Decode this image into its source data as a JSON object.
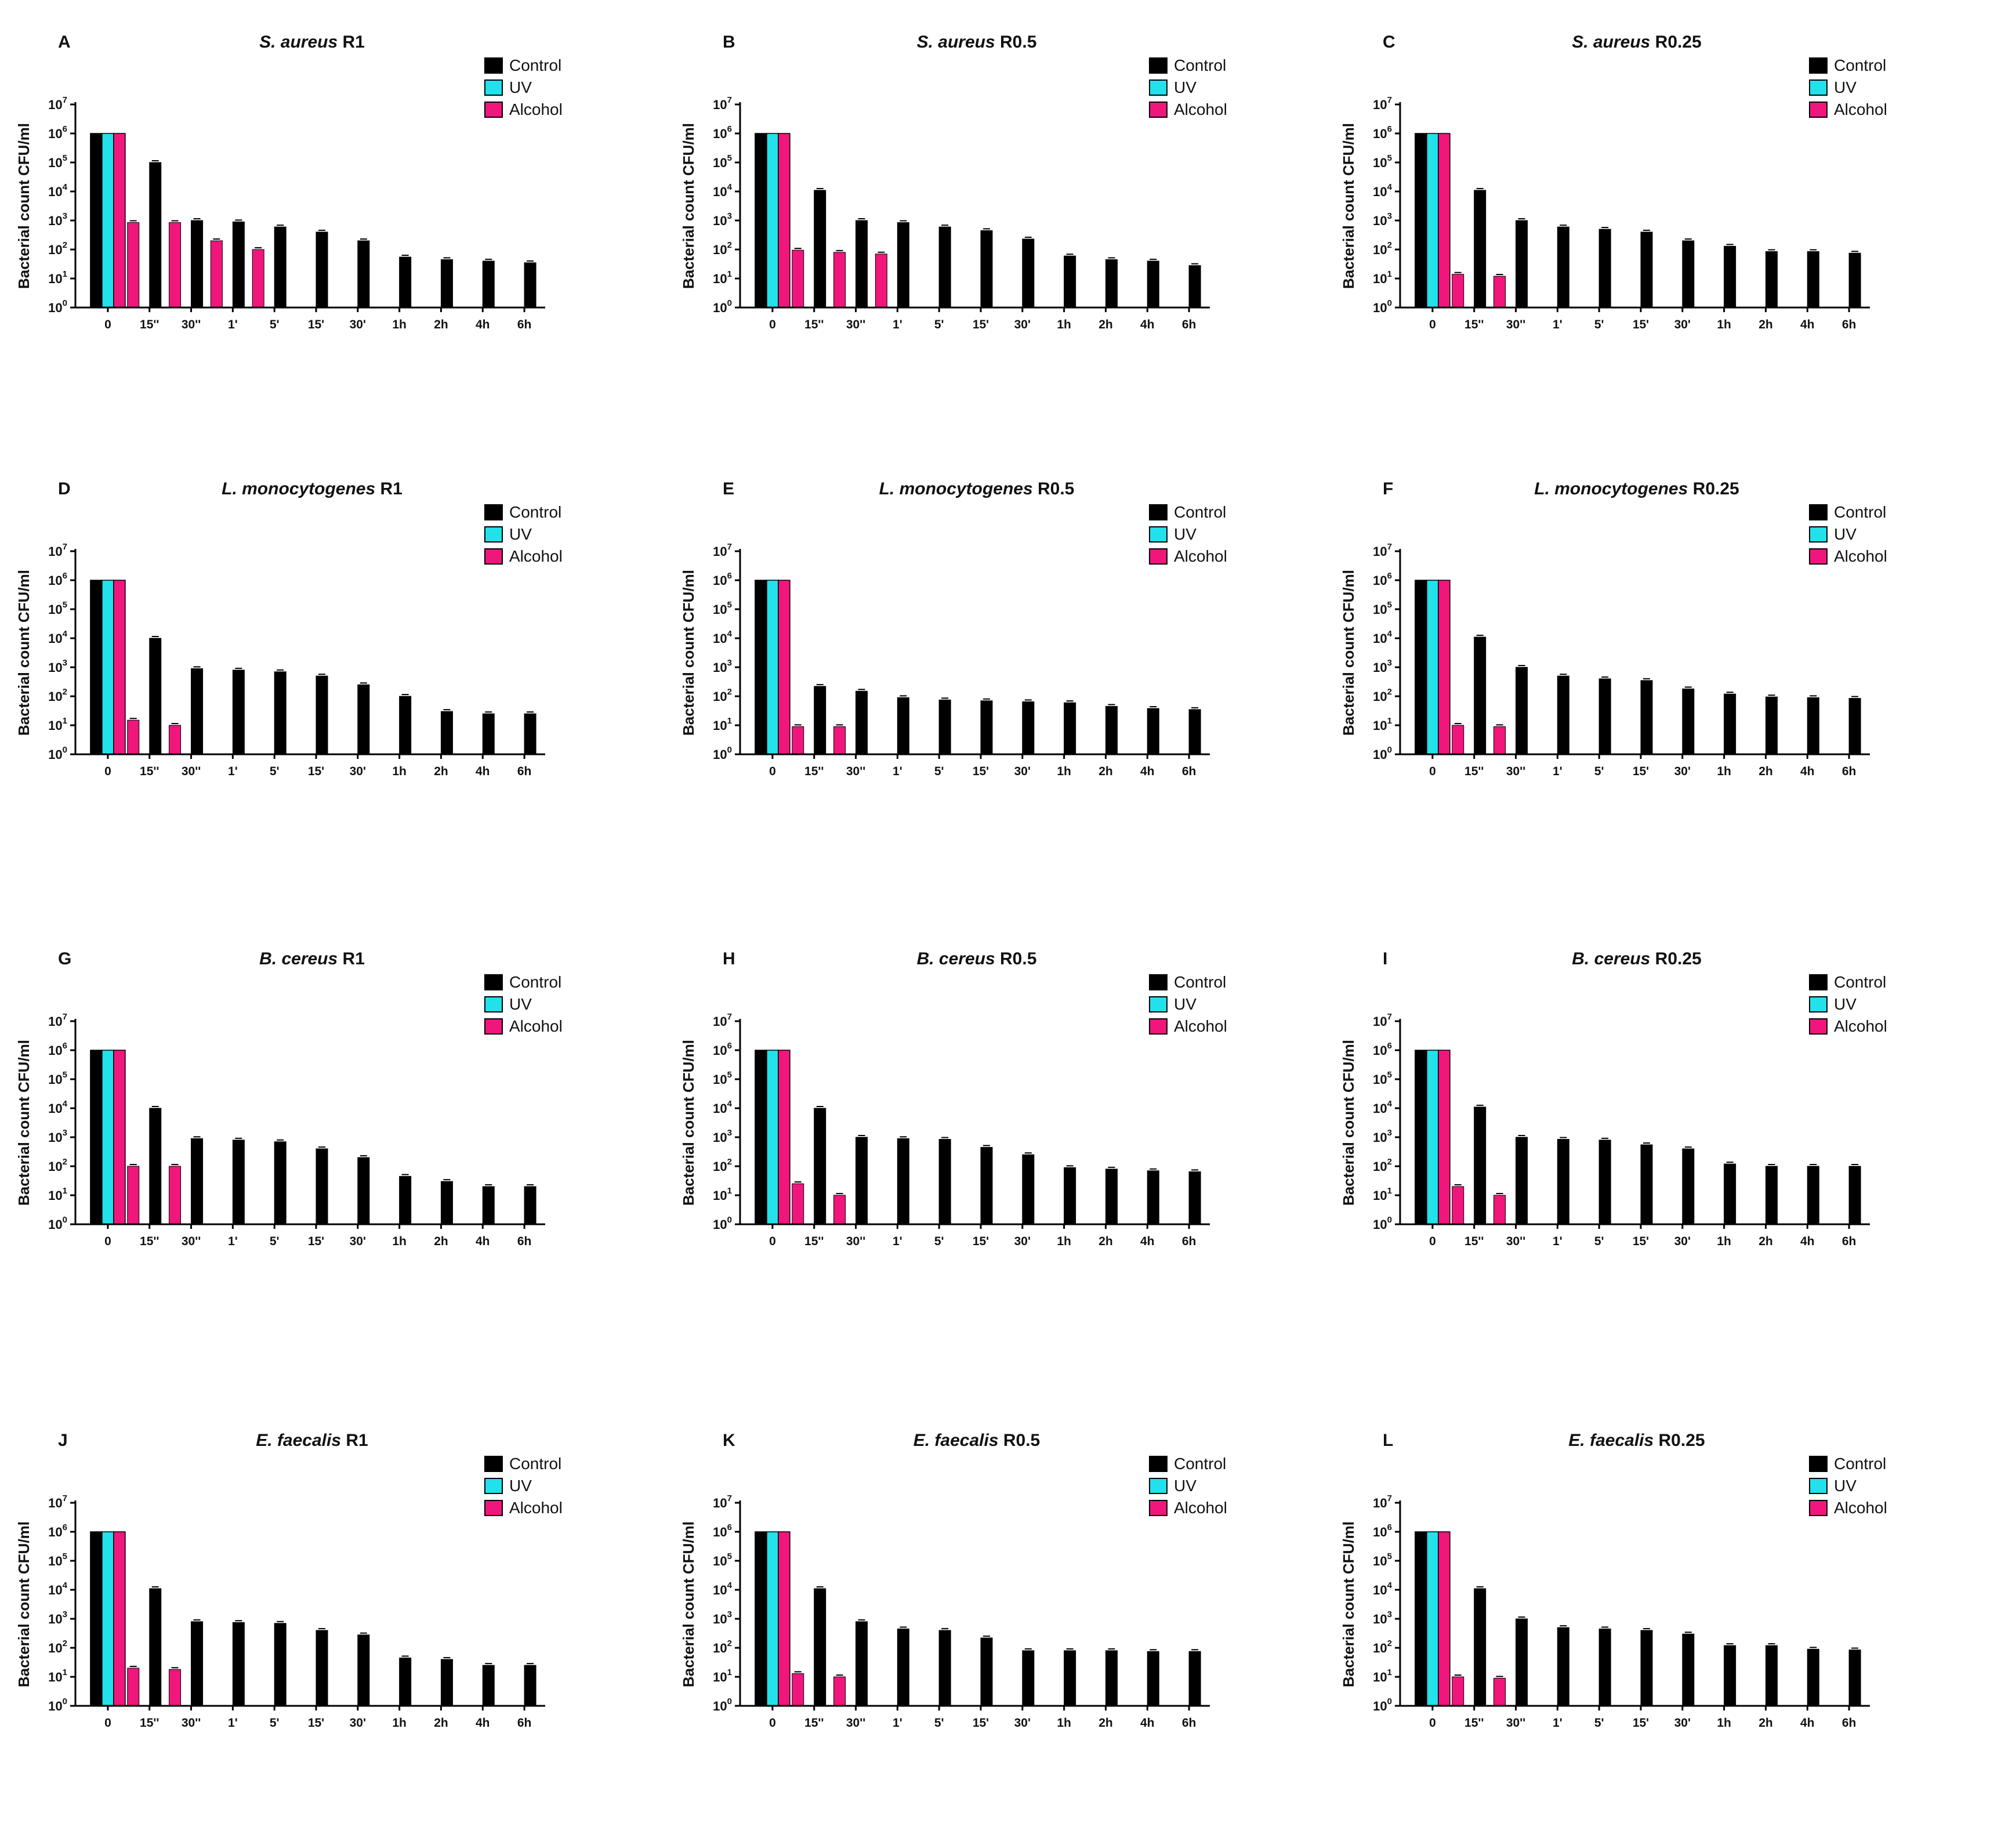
{
  "figure": {
    "y_axis_label": "Bacterial count CFU/ml",
    "legend": [
      {
        "name": "Control",
        "color": "#000000"
      },
      {
        "name": "UV",
        "color": "#22e1ea"
      },
      {
        "name": "Alcohol",
        "color": "#f0167c"
      }
    ],
    "y_tick_base": "10",
    "y_tick_exponents": [
      "0",
      "1",
      "2",
      "3",
      "4",
      "5",
      "6",
      "7"
    ]
  },
  "chart_data": [
    {
      "type": "bar",
      "panel": "A",
      "species": "S. aureus",
      "condition": "R1",
      "categories": [
        "0",
        "15''",
        "30''",
        "1'",
        "5'",
        "15'",
        "30'",
        "1h",
        "2h",
        "4h",
        "6h"
      ],
      "ylabel": "Bacterial count CFU/ml",
      "yscale": "log",
      "ylim": [
        1,
        10000000
      ],
      "series": [
        {
          "name": "Control",
          "values": [
            1000000,
            100000,
            1000,
            900,
            600,
            400,
            200,
            55,
            45,
            40,
            35
          ]
        },
        {
          "name": "UV",
          "values": [
            1000000,
            null,
            null,
            null,
            null,
            null,
            null,
            null,
            null,
            null,
            null
          ]
        },
        {
          "name": "Alcohol",
          "values": [
            1000000,
            850,
            850,
            200,
            100,
            null,
            null,
            null,
            null,
            null,
            null
          ]
        }
      ]
    },
    {
      "type": "bar",
      "panel": "B",
      "species": "S. aureus",
      "condition": "R0.5",
      "categories": [
        "0",
        "15''",
        "30''",
        "1'",
        "5'",
        "15'",
        "30'",
        "1h",
        "2h",
        "4h",
        "6h"
      ],
      "ylabel": "Bacterial count CFU/ml",
      "yscale": "log",
      "ylim": [
        1,
        10000000
      ],
      "series": [
        {
          "name": "Control",
          "values": [
            1000000,
            11000,
            1000,
            850,
            600,
            450,
            230,
            60,
            45,
            40,
            28
          ]
        },
        {
          "name": "UV",
          "values": [
            1000000,
            null,
            null,
            null,
            null,
            null,
            null,
            null,
            null,
            null,
            null
          ]
        },
        {
          "name": "Alcohol",
          "values": [
            1000000,
            95,
            80,
            70,
            null,
            null,
            null,
            null,
            null,
            null,
            null
          ]
        }
      ]
    },
    {
      "type": "bar",
      "panel": "C",
      "species": "S. aureus",
      "condition": "R0.25",
      "categories": [
        "0",
        "15''",
        "30''",
        "1'",
        "5'",
        "15'",
        "30'",
        "1h",
        "2h",
        "4h",
        "6h"
      ],
      "ylabel": "Bacterial count CFU/ml",
      "yscale": "log",
      "ylim": [
        1,
        10000000
      ],
      "series": [
        {
          "name": "Control",
          "values": [
            1000000,
            11000,
            1000,
            600,
            500,
            400,
            200,
            130,
            85,
            85,
            75
          ]
        },
        {
          "name": "UV",
          "values": [
            1000000,
            null,
            null,
            null,
            null,
            null,
            null,
            null,
            null,
            null,
            null
          ]
        },
        {
          "name": "Alcohol",
          "values": [
            1000000,
            14,
            12,
            null,
            null,
            null,
            null,
            null,
            null,
            null,
            null
          ]
        }
      ]
    },
    {
      "type": "bar",
      "panel": "D",
      "species": "L. monocytogenes",
      "condition": "R1",
      "categories": [
        "0",
        "15''",
        "30''",
        "1'",
        "5'",
        "15'",
        "30'",
        "1h",
        "2h",
        "4h",
        "6h"
      ],
      "ylabel": "Bacterial count CFU/ml",
      "yscale": "log",
      "ylim": [
        1,
        10000000
      ],
      "series": [
        {
          "name": "Control",
          "values": [
            1000000,
            10000,
            900,
            800,
            700,
            500,
            250,
            100,
            30,
            25,
            25
          ]
        },
        {
          "name": "UV",
          "values": [
            1000000,
            null,
            null,
            null,
            null,
            null,
            null,
            null,
            null,
            null,
            null
          ]
        },
        {
          "name": "Alcohol",
          "values": [
            1000000,
            15,
            10,
            null,
            null,
            null,
            null,
            null,
            null,
            null,
            null
          ]
        }
      ]
    },
    {
      "type": "bar",
      "panel": "E",
      "species": "L. monocytogenes",
      "condition": "R0.5",
      "categories": [
        "0",
        "15''",
        "30''",
        "1'",
        "5'",
        "15'",
        "30'",
        "1h",
        "2h",
        "4h",
        "6h"
      ],
      "ylabel": "Bacterial count CFU/ml",
      "yscale": "log",
      "ylim": [
        1,
        10000000
      ],
      "series": [
        {
          "name": "Control",
          "values": [
            1000000,
            220,
            150,
            90,
            75,
            70,
            65,
            60,
            45,
            38,
            35
          ]
        },
        {
          "name": "UV",
          "values": [
            1000000,
            null,
            null,
            null,
            null,
            null,
            null,
            null,
            null,
            null,
            null
          ]
        },
        {
          "name": "Alcohol",
          "values": [
            1000000,
            9,
            9,
            null,
            null,
            null,
            null,
            null,
            null,
            null,
            null
          ]
        }
      ]
    },
    {
      "type": "bar",
      "panel": "F",
      "species": "L. monocytogenes",
      "condition": "R0.25",
      "categories": [
        "0",
        "15''",
        "30''",
        "1'",
        "5'",
        "15'",
        "30'",
        "1h",
        "2h",
        "4h",
        "6h"
      ],
      "ylabel": "Bacterial count CFU/ml",
      "yscale": "log",
      "ylim": [
        1,
        10000000
      ],
      "series": [
        {
          "name": "Control",
          "values": [
            1000000,
            11000,
            1000,
            500,
            400,
            350,
            180,
            120,
            95,
            90,
            85
          ]
        },
        {
          "name": "UV",
          "values": [
            1000000,
            null,
            null,
            null,
            null,
            null,
            null,
            null,
            null,
            null,
            null
          ]
        },
        {
          "name": "Alcohol",
          "values": [
            1000000,
            10,
            9,
            null,
            null,
            null,
            null,
            null,
            null,
            null,
            null
          ]
        }
      ]
    },
    {
      "type": "bar",
      "panel": "G",
      "species": "B. cereus",
      "condition": "R1",
      "categories": [
        "0",
        "15''",
        "30''",
        "1'",
        "5'",
        "15'",
        "30'",
        "1h",
        "2h",
        "4h",
        "6h"
      ],
      "ylabel": "Bacterial count CFU/ml",
      "yscale": "log",
      "ylim": [
        1,
        10000000
      ],
      "series": [
        {
          "name": "Control",
          "values": [
            1000000,
            10000,
            900,
            800,
            700,
            400,
            200,
            45,
            30,
            20,
            20
          ]
        },
        {
          "name": "UV",
          "values": [
            1000000,
            null,
            null,
            null,
            null,
            null,
            null,
            null,
            null,
            null,
            null
          ]
        },
        {
          "name": "Alcohol",
          "values": [
            1000000,
            100,
            100,
            null,
            null,
            null,
            null,
            null,
            null,
            null,
            null
          ]
        }
      ]
    },
    {
      "type": "bar",
      "panel": "H",
      "species": "B. cereus",
      "condition": "R0.5",
      "categories": [
        "0",
        "15''",
        "30''",
        "1'",
        "5'",
        "15'",
        "30'",
        "1h",
        "2h",
        "4h",
        "6h"
      ],
      "ylabel": "Bacterial count CFU/ml",
      "yscale": "log",
      "ylim": [
        1,
        10000000
      ],
      "series": [
        {
          "name": "Control",
          "values": [
            1000000,
            10000,
            1000,
            900,
            850,
            450,
            250,
            90,
            80,
            70,
            65
          ]
        },
        {
          "name": "UV",
          "values": [
            1000000,
            null,
            null,
            null,
            null,
            null,
            null,
            null,
            null,
            null,
            null
          ]
        },
        {
          "name": "Alcohol",
          "values": [
            1000000,
            25,
            10,
            null,
            null,
            null,
            null,
            null,
            null,
            null,
            null
          ]
        }
      ]
    },
    {
      "type": "bar",
      "panel": "I",
      "species": "B. cereus",
      "condition": "R0.25",
      "categories": [
        "0",
        "15''",
        "30''",
        "1'",
        "5'",
        "15'",
        "30'",
        "1h",
        "2h",
        "4h",
        "6h"
      ],
      "ylabel": "Bacterial count CFU/ml",
      "yscale": "log",
      "ylim": [
        1,
        10000000
      ],
      "series": [
        {
          "name": "Control",
          "values": [
            1000000,
            11000,
            1000,
            850,
            800,
            550,
            400,
            120,
            100,
            100,
            100
          ]
        },
        {
          "name": "UV",
          "values": [
            1000000,
            null,
            null,
            null,
            null,
            null,
            null,
            null,
            null,
            null,
            null
          ]
        },
        {
          "name": "Alcohol",
          "values": [
            1000000,
            20,
            10,
            null,
            null,
            null,
            null,
            null,
            null,
            null,
            null
          ]
        }
      ]
    },
    {
      "type": "bar",
      "panel": "J",
      "species": "E. faecalis",
      "condition": "R1",
      "categories": [
        "0",
        "15''",
        "30''",
        "1'",
        "5'",
        "15'",
        "30'",
        "1h",
        "2h",
        "4h",
        "6h"
      ],
      "ylabel": "Bacterial count CFU/ml",
      "yscale": "log",
      "ylim": [
        1,
        10000000
      ],
      "series": [
        {
          "name": "Control",
          "values": [
            1000000,
            11000,
            800,
            750,
            700,
            400,
            280,
            45,
            40,
            25,
            25
          ]
        },
        {
          "name": "UV",
          "values": [
            1000000,
            null,
            null,
            null,
            null,
            null,
            null,
            null,
            null,
            null,
            null
          ]
        },
        {
          "name": "Alcohol",
          "values": [
            1000000,
            20,
            18,
            null,
            null,
            null,
            null,
            null,
            null,
            null,
            null
          ]
        }
      ]
    },
    {
      "type": "bar",
      "panel": "K",
      "species": "E. faecalis",
      "condition": "R0.5",
      "categories": [
        "0",
        "15''",
        "30''",
        "1'",
        "5'",
        "15'",
        "30'",
        "1h",
        "2h",
        "4h",
        "6h"
      ],
      "ylabel": "Bacterial count CFU/ml",
      "yscale": "log",
      "ylim": [
        1,
        10000000
      ],
      "series": [
        {
          "name": "Control",
          "values": [
            1000000,
            11000,
            800,
            450,
            400,
            220,
            80,
            80,
            80,
            75,
            75
          ]
        },
        {
          "name": "UV",
          "values": [
            1000000,
            null,
            null,
            null,
            null,
            null,
            null,
            null,
            null,
            null,
            null
          ]
        },
        {
          "name": "Alcohol",
          "values": [
            1000000,
            13,
            10,
            null,
            null,
            null,
            null,
            null,
            null,
            null,
            null
          ]
        }
      ]
    },
    {
      "type": "bar",
      "panel": "L",
      "species": "E. faecalis",
      "condition": "R0.25",
      "categories": [
        "0",
        "15''",
        "30''",
        "1'",
        "5'",
        "15'",
        "30'",
        "1h",
        "2h",
        "4h",
        "6h"
      ],
      "ylabel": "Bacterial count CFU/ml",
      "yscale": "log",
      "ylim": [
        1,
        10000000
      ],
      "series": [
        {
          "name": "Control",
          "values": [
            1000000,
            11000,
            1000,
            500,
            450,
            400,
            300,
            120,
            120,
            90,
            85
          ]
        },
        {
          "name": "UV",
          "values": [
            1000000,
            null,
            null,
            null,
            null,
            null,
            null,
            null,
            null,
            null,
            null
          ]
        },
        {
          "name": "Alcohol",
          "values": [
            1000000,
            10,
            9,
            null,
            null,
            null,
            null,
            null,
            null,
            null,
            null
          ]
        }
      ]
    }
  ]
}
